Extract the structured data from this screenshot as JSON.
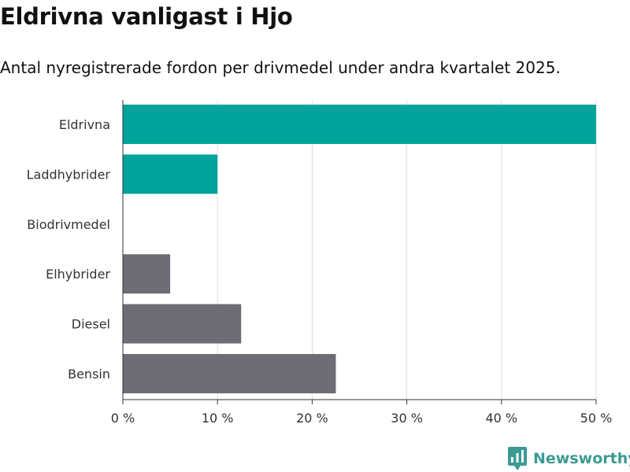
{
  "header": {
    "title": "Eldrivna vanligast i Hjo",
    "subtitle": "Antal nyregistrerade fordon per drivmedel under andra kvartalet 2025."
  },
  "brand": {
    "name": "Newsworthy",
    "icon": "newsworthy-logo-icon"
  },
  "colors": {
    "highlight": "#00a39a",
    "default": "#6e6d75",
    "grid": "#dddddd",
    "axis": "#333333"
  },
  "chart_data": {
    "type": "bar",
    "orientation": "horizontal",
    "categories": [
      "Eldrivna",
      "Laddhybrider",
      "Biodrivmedel",
      "Elhybrider",
      "Diesel",
      "Bensin"
    ],
    "values": [
      50,
      10,
      0,
      5,
      12.5,
      22.5
    ],
    "highlight": [
      true,
      true,
      false,
      false,
      false,
      false
    ],
    "xlim": [
      0,
      50
    ],
    "xticks": [
      0,
      10,
      20,
      30,
      40,
      50
    ],
    "xtick_labels": [
      "0 %",
      "10 %",
      "20 %",
      "30 %",
      "40 %",
      "50 %"
    ],
    "grid": true,
    "legend": "none"
  }
}
